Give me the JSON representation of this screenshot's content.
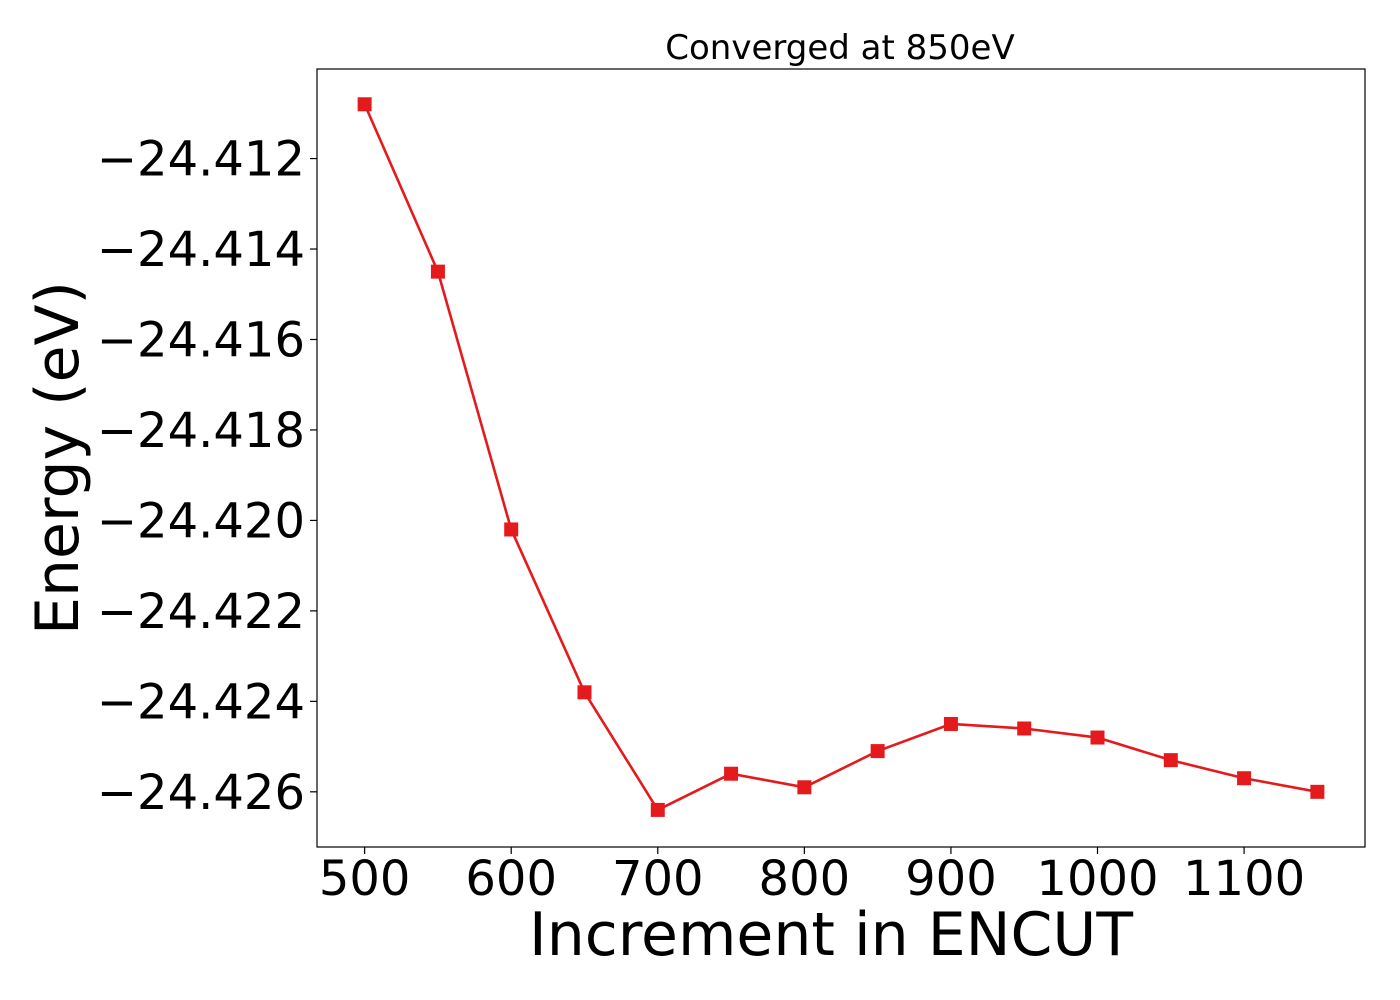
{
  "chart_data": {
    "type": "line",
    "title": "Converged at 850eV",
    "xlabel": "Increment in ENCUT",
    "ylabel": "Energy (eV)",
    "x": [
      500,
      550,
      600,
      650,
      700,
      750,
      800,
      850,
      900,
      950,
      1000,
      1050,
      1100,
      1150
    ],
    "series": [
      {
        "values": [
          -24.4108,
          -24.4145,
          -24.4202,
          -24.4238,
          -24.4264,
          -24.4256,
          -24.4259,
          -24.4251,
          -24.4245,
          -24.4246,
          -24.4248,
          -24.4253,
          -24.4257,
          -24.426
        ],
        "color": "#e41a1c",
        "marker": "square"
      }
    ],
    "xticks": [
      500,
      600,
      700,
      800,
      900,
      1000,
      1100
    ],
    "xtick_labels": [
      "500",
      "600",
      "700",
      "800",
      "900",
      "1000",
      "1100"
    ],
    "yticks": [
      -24.412,
      -24.414,
      -24.416,
      -24.418,
      -24.42,
      -24.422,
      -24.424,
      -24.426
    ],
    "ytick_labels": [
      "−24.412",
      "−24.414",
      "−24.416",
      "−24.418",
      "−24.420",
      "−24.422",
      "−24.424",
      "−24.426"
    ],
    "xlim": [
      467.5,
      1182.5
    ],
    "ylim": [
      -24.42722,
      -24.41002
    ],
    "grid": false,
    "legend": "none"
  }
}
